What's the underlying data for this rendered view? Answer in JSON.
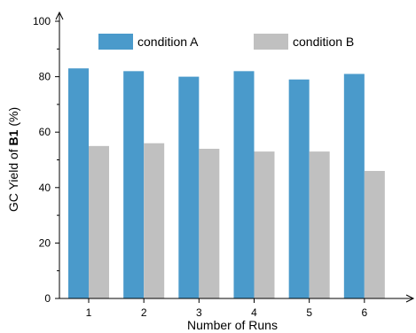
{
  "chart_data": {
    "type": "bar",
    "categories": [
      "1",
      "2",
      "3",
      "4",
      "5",
      "6"
    ],
    "series": [
      {
        "name": "condition A",
        "values": [
          83,
          82,
          80,
          82,
          79,
          81
        ],
        "color": "#4a9acb"
      },
      {
        "name": "condition B",
        "values": [
          55,
          56,
          54,
          53,
          53,
          46
        ],
        "color": "#c0c0c0"
      }
    ],
    "xlabel": "Number of Runs",
    "ylabel_prefix": "GC Yield of ",
    "ylabel_bold": "B1",
    "ylabel_suffix": " (%)",
    "ylim": [
      0,
      100
    ],
    "yticks": [
      "0",
      "20",
      "40",
      "60",
      "80",
      "100"
    ],
    "grid": false,
    "legend_position": "top-center"
  }
}
